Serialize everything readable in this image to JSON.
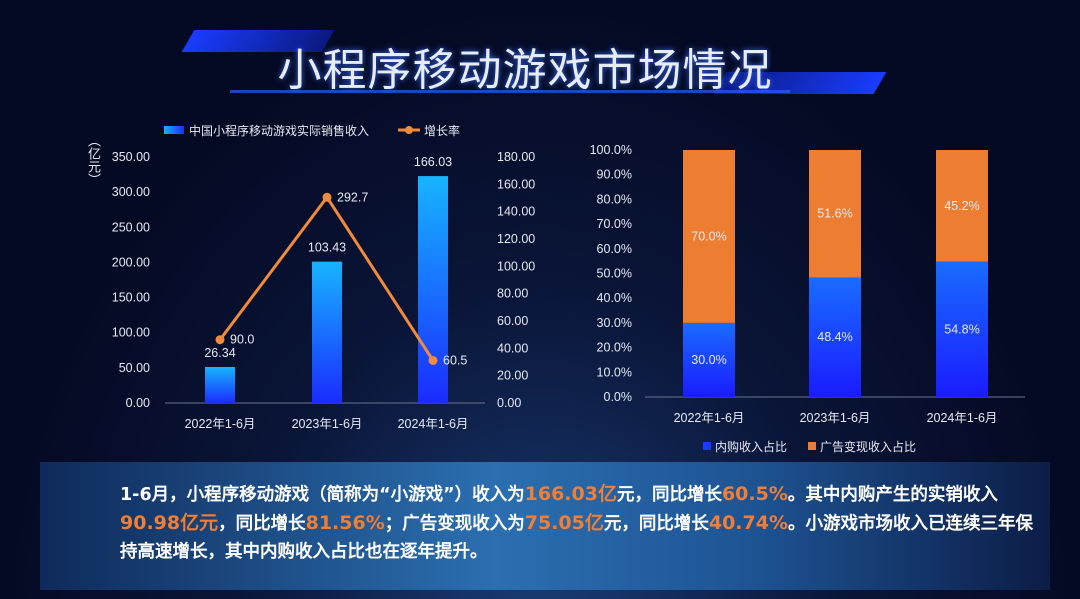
{
  "title": "小程序移动游戏市场情况",
  "chart_data": [
    {
      "type": "bar+line",
      "legend": [
        "中国小程序移动游戏实际销售收入",
        "增长率"
      ],
      "legend_position": "top",
      "y_left_label": "（亿元）",
      "categories": [
        "2022年1-6月",
        "2023年1-6月",
        "2024年1-6月"
      ],
      "series": [
        {
          "name": "中国小程序移动游戏实际销售收入",
          "type": "bar",
          "axis": "right",
          "values": [
            26.34,
            103.43,
            166.03
          ],
          "labels": [
            "26.34",
            "103.43",
            "166.03"
          ]
        },
        {
          "name": "增长率",
          "type": "line",
          "axis": "left",
          "values": [
            90.0,
            292.7,
            60.5
          ],
          "labels": [
            "90.0",
            "292.7",
            "60.5"
          ]
        }
      ],
      "y_left_ticks": [
        "0.00",
        "50.00",
        "100.00",
        "150.00",
        "200.00",
        "250.00",
        "300.00",
        "350.00"
      ],
      "y_left_range": [
        0,
        350
      ],
      "y_right_ticks": [
        "0.00",
        "20.00",
        "40.00",
        "60.00",
        "80.00",
        "100.00",
        "120.00",
        "140.00",
        "160.00",
        "180.00"
      ],
      "y_right_range": [
        0,
        180
      ],
      "grid": false,
      "colors": {
        "bar_top": "#18b4ff",
        "bar_bottom": "#1a2cff",
        "line": "#f08a3c"
      }
    },
    {
      "type": "stacked-bar",
      "categories": [
        "2022年1-6月",
        "2023年1-6月",
        "2024年1-6月"
      ],
      "series": [
        {
          "name": "内购收入占比",
          "values": [
            30.0,
            48.4,
            54.8
          ],
          "labels": [
            "30.0%",
            "48.4%",
            "54.8%"
          ],
          "color": "#1a3cff"
        },
        {
          "name": "广告变现收入占比",
          "values": [
            70.0,
            51.6,
            45.2
          ],
          "labels": [
            "70.0%",
            "51.6%",
            "45.2%"
          ],
          "color": "#ed7d31"
        }
      ],
      "y_ticks": [
        "0.0%",
        "10.0%",
        "20.0%",
        "30.0%",
        "40.0%",
        "50.0%",
        "60.0%",
        "70.0%",
        "80.0%",
        "90.0%",
        "100.0%"
      ],
      "y_range": [
        0,
        100
      ],
      "legend_position": "bottom",
      "grid": false
    }
  ],
  "summary": {
    "segments": [
      {
        "text": "1-6月，小程序移动游戏（简称为“小游戏”）收入为",
        "hl": false
      },
      {
        "text": "166.03亿",
        "hl": true
      },
      {
        "text": "元，同比增长",
        "hl": false
      },
      {
        "text": "60.5%",
        "hl": true
      },
      {
        "text": "。其中内购产生的实销收入",
        "hl": false
      },
      {
        "text": "90.98亿元",
        "hl": true
      },
      {
        "text": "，同比增长",
        "hl": false
      },
      {
        "text": "81.56%",
        "hl": true
      },
      {
        "text": "；广告变现收入为",
        "hl": false
      },
      {
        "text": "75.05亿",
        "hl": true
      },
      {
        "text": "元，同比增长",
        "hl": false
      },
      {
        "text": "40.74%",
        "hl": true
      },
      {
        "text": "。小游戏市场收入已连续三年保持高速增长，其中内购收入占比也在逐年提升。",
        "hl": false
      }
    ]
  }
}
